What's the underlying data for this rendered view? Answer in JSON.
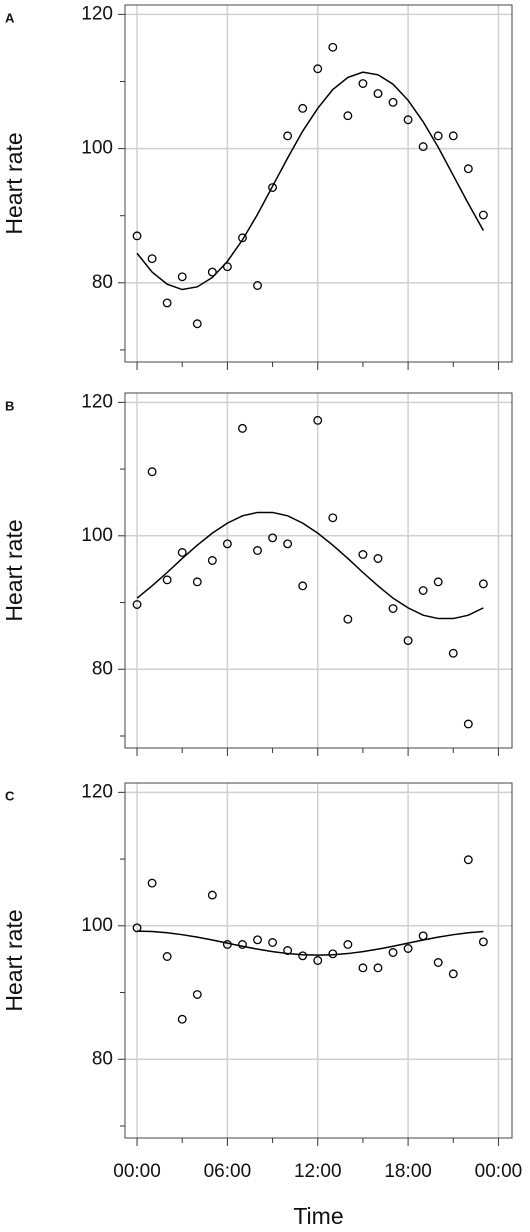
{
  "chart_data": [
    {
      "type": "scatter",
      "panel_label": "A",
      "ylabel": "Heart rate",
      "color": "#000000",
      "grid": true,
      "x": [
        0,
        1,
        2,
        3,
        4,
        5,
        6,
        7,
        8,
        9,
        10,
        11,
        12,
        13,
        14,
        15,
        16,
        17,
        18,
        19,
        20,
        21,
        22,
        23
      ],
      "values": [
        87.0,
        83.6,
        77.0,
        80.9,
        73.9,
        81.6,
        82.4,
        86.7,
        79.6,
        94.2,
        101.9,
        106.0,
        111.9,
        115.1,
        104.9,
        109.7,
        108.2,
        106.9,
        104.3,
        100.3,
        101.9,
        101.9,
        97.0,
        90.1
      ],
      "fit_values": [
        84.4,
        81.6,
        79.8,
        79.0,
        79.4,
        80.8,
        83.2,
        86.4,
        90.2,
        94.4,
        98.6,
        102.6,
        106.0,
        108.8,
        110.6,
        111.4,
        111.0,
        109.6,
        107.2,
        104.0,
        100.2,
        96.0,
        91.8,
        87.8
      ],
      "xlim": [
        -0.8,
        24.9
      ],
      "ylim": [
        68.2,
        121.4
      ],
      "xticks": [
        0,
        6,
        12,
        18,
        24
      ],
      "xtick_labels": false,
      "xminor": [
        3,
        9,
        15,
        21
      ],
      "yticks": [
        80,
        100,
        120
      ],
      "yminor": [
        70,
        90,
        110
      ]
    },
    {
      "type": "scatter",
      "panel_label": "B",
      "ylabel": "Heart rate",
      "color": "#000000",
      "grid": true,
      "x": [
        0,
        1,
        2,
        3,
        4,
        5,
        6,
        7,
        8,
        9,
        10,
        11,
        12,
        13,
        14,
        15,
        16,
        17,
        18,
        19,
        20,
        21,
        22,
        23
      ],
      "values": [
        89.7,
        109.6,
        93.4,
        97.5,
        93.1,
        96.3,
        98.8,
        116.1,
        97.8,
        99.7,
        98.8,
        92.5,
        117.3,
        102.7,
        87.5,
        97.2,
        96.6,
        89.1,
        84.3,
        91.8,
        93.1,
        82.4,
        71.8,
        92.8
      ],
      "fit_values": [
        90.65,
        92.5,
        94.5,
        96.6,
        98.6,
        100.4,
        101.9,
        103.0,
        103.5,
        103.5,
        103.0,
        101.9,
        100.4,
        98.6,
        96.6,
        94.5,
        92.5,
        90.65,
        89.2,
        88.1,
        87.6,
        87.6,
        88.1,
        89.2
      ],
      "xlim": [
        -0.8,
        24.9
      ],
      "ylim": [
        68.2,
        121.4
      ],
      "xticks": [
        0,
        6,
        12,
        18,
        24
      ],
      "xtick_labels": false,
      "xminor": [
        3,
        9,
        15,
        21
      ],
      "yticks": [
        80,
        100,
        120
      ],
      "yminor": [
        70,
        90,
        110
      ]
    },
    {
      "type": "scatter",
      "panel_label": "C",
      "ylabel": "Heart rate",
      "xlabel": "Time",
      "color": "#000000",
      "grid": true,
      "x": [
        0,
        1,
        2,
        3,
        4,
        5,
        6,
        7,
        8,
        9,
        10,
        11,
        12,
        13,
        14,
        15,
        16,
        17,
        18,
        19,
        20,
        21,
        22,
        23
      ],
      "values": [
        99.7,
        106.4,
        95.4,
        86.0,
        89.7,
        104.6,
        97.2,
        97.2,
        97.9,
        97.5,
        96.3,
        95.5,
        94.8,
        95.8,
        97.2,
        93.7,
        93.7,
        96.0,
        96.6,
        98.5,
        94.5,
        92.8,
        109.9,
        97.6
      ],
      "fit_values": [
        99.2,
        99.14,
        98.96,
        98.67,
        98.3,
        97.87,
        97.4,
        96.93,
        96.5,
        96.13,
        95.84,
        95.66,
        95.6,
        95.66,
        95.84,
        96.13,
        96.5,
        96.93,
        97.4,
        97.87,
        98.3,
        98.67,
        98.96,
        99.14
      ],
      "xlim": [
        -0.8,
        24.9
      ],
      "ylim": [
        68.2,
        121.4
      ],
      "xticks": [
        {
          "value": 0,
          "label": "00:00"
        },
        {
          "value": 6,
          "label": "06:00"
        },
        {
          "value": 12,
          "label": "12:00"
        },
        {
          "value": 18,
          "label": "18:00"
        },
        {
          "value": 24,
          "label": "00:00"
        }
      ],
      "xtick_labels": true,
      "xminor": [
        3,
        9,
        15,
        21
      ],
      "yticks": [
        80,
        100,
        120
      ],
      "yminor": [
        70,
        90,
        110
      ]
    }
  ]
}
